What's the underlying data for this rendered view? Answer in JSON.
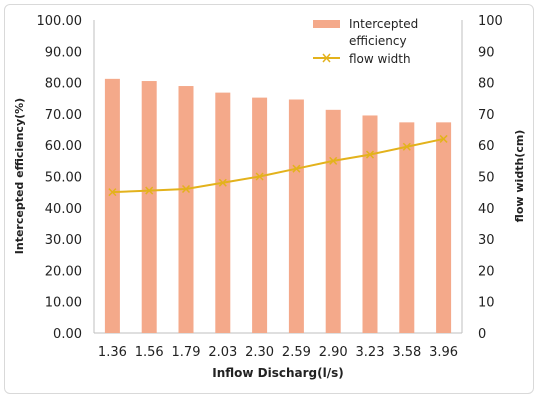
{
  "chart_data": {
    "type": "bar+line",
    "categories": [
      "1.36",
      "1.56",
      "1.79",
      "2.03",
      "2.30",
      "2.59",
      "2.90",
      "3.23",
      "3.58",
      "3.96"
    ],
    "series": [
      {
        "name": "Intercepted efficiency",
        "type": "bar",
        "axis": "left",
        "color": "#f4a98a",
        "values": [
          81.2,
          80.5,
          78.9,
          76.8,
          75.2,
          74.6,
          71.3,
          69.5,
          67.3,
          67.3
        ]
      },
      {
        "name": "flow width",
        "type": "line",
        "axis": "right",
        "color": "#e3b21c",
        "marker": "x",
        "values": [
          45,
          45.5,
          46,
          48,
          50,
          52.5,
          55,
          57,
          59.5,
          62
        ]
      }
    ],
    "xlabel": "Inflow Discharg(l/s)",
    "ylabel_left": "Intercepted efficiency(%)",
    "ylabel_right": "flow width(cm)",
    "ylim_left": [
      0,
      100
    ],
    "ylim_right": [
      0,
      100
    ],
    "yticks_left": [
      "0.00",
      "10.00",
      "20.00",
      "30.00",
      "40.00",
      "50.00",
      "60.00",
      "70.00",
      "80.00",
      "90.00",
      "100.00"
    ],
    "yticks_right": [
      "0",
      "10",
      "20",
      "30",
      "40",
      "50",
      "60",
      "70",
      "80",
      "90",
      "100"
    ],
    "legend_position": "top-right",
    "legend": {
      "bar_label_line1": "Intercepted",
      "bar_label_line2": "efficiency",
      "line_label": "flow width"
    },
    "grid": false
  }
}
